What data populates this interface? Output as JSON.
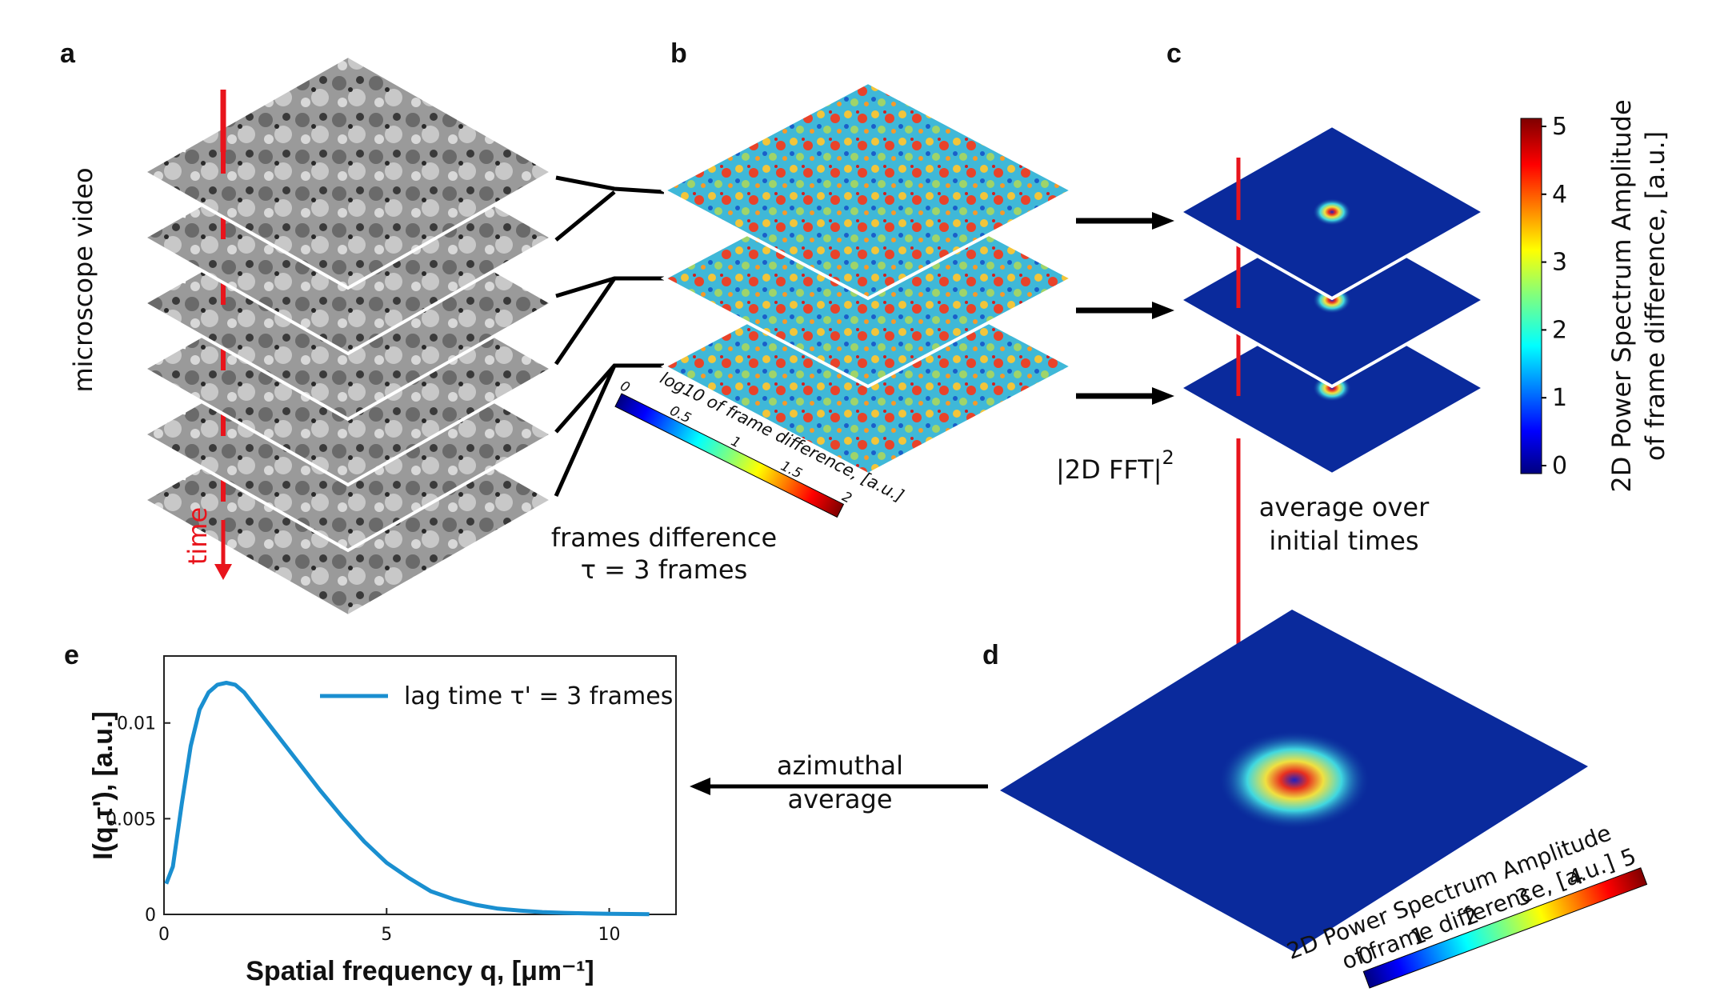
{
  "panels": {
    "a": "a",
    "b": "b",
    "c": "c",
    "d": "d",
    "e": "e"
  },
  "panel_a": {
    "ylabel": "microscope video",
    "time_label": "time",
    "frame_count": 6
  },
  "panel_b": {
    "caption_line1": "frames difference",
    "caption_line2": "τ = 3 frames",
    "colorbar_label": "log10 of frame difference, [a.u.]",
    "colorbar_ticks": [
      "0",
      "0.5",
      "1",
      "1.5",
      "2"
    ],
    "frame_count": 3
  },
  "panel_c": {
    "fft_label": "|2D FFT|",
    "fft_exponent": "2",
    "avg_line1": "average over",
    "avg_line2": "initial times",
    "colorbar_label_line1": "2D Power Spectrum Amplitude",
    "colorbar_label_line2": "of frame difference, [a.u.]",
    "colorbar_ticks": [
      "5",
      "4",
      "3",
      "2",
      "1",
      "0"
    ],
    "frame_count": 3
  },
  "panel_d": {
    "azimuthal_line1": "azimuthal",
    "azimuthal_line2": "average",
    "colorbar_label_line1": "2D Power Spectrum Amplitude",
    "colorbar_label_line2": "of frame difference, [a.u.]",
    "colorbar_ticks": [
      "0",
      "1",
      "2",
      "3",
      "4",
      "5"
    ]
  },
  "colors": {
    "accent_red": "#e8141c",
    "plot_line": "#1a8fd0",
    "field_blue": "#0a2a9c"
  },
  "chart_data": {
    "type": "line",
    "title": "",
    "xlabel": "Spatial frequency q, [μm⁻¹]",
    "ylabel": "I(q,τ'), [a.u.]",
    "xlim": [
      0,
      11.5
    ],
    "ylim": [
      0,
      0.0135
    ],
    "xticks": [
      "0",
      "5",
      "10"
    ],
    "yticks": [
      "0",
      "0.005",
      "0.01"
    ],
    "legend_position": "top-right",
    "grid": false,
    "series": [
      {
        "name": "lag time τ' = 3 frames",
        "x": [
          0.05,
          0.2,
          0.4,
          0.6,
          0.8,
          1.0,
          1.2,
          1.4,
          1.6,
          1.8,
          2.0,
          2.5,
          3.0,
          3.5,
          4.0,
          4.5,
          5.0,
          5.5,
          6.0,
          6.5,
          7.0,
          7.5,
          8.0,
          8.5,
          9.0,
          9.5,
          10.0,
          10.5,
          10.9
        ],
        "y": [
          0.0016,
          0.0025,
          0.0058,
          0.0088,
          0.0107,
          0.0116,
          0.012,
          0.0121,
          0.012,
          0.0116,
          0.011,
          0.0095,
          0.008,
          0.0065,
          0.0051,
          0.0038,
          0.0027,
          0.0019,
          0.0012,
          0.0008,
          0.0005,
          0.0003,
          0.0002,
          0.00012,
          8e-05,
          5e-05,
          3e-05,
          2e-05,
          1e-05
        ]
      }
    ]
  }
}
